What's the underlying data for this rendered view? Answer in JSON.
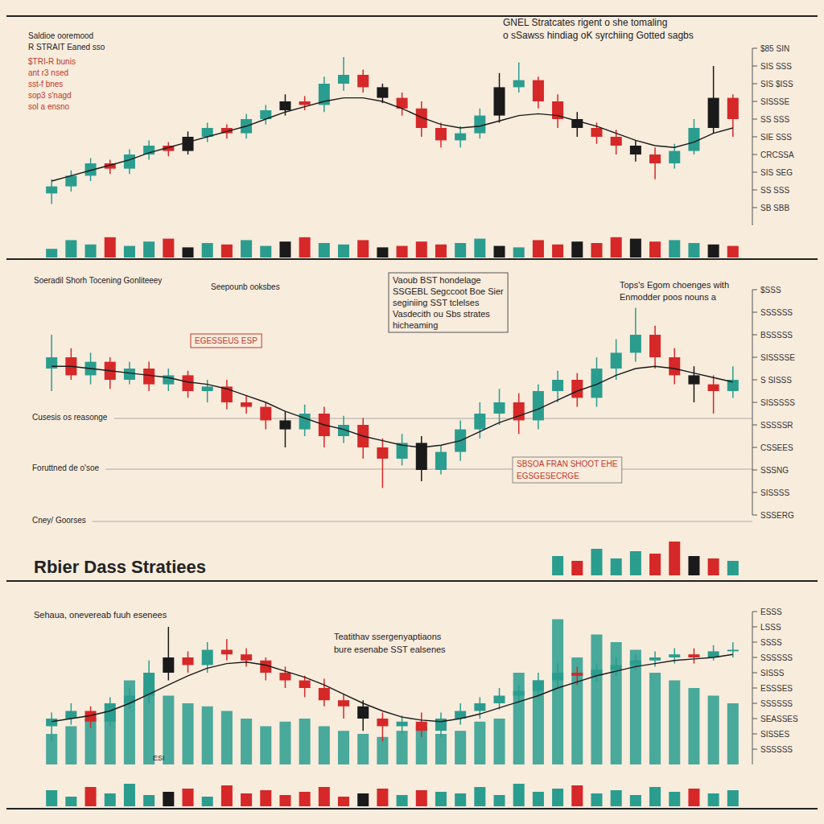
{
  "chart_data": [
    {
      "type": "candlestick",
      "title": "GNEL Stratcates rigent o she tomaling",
      "subtitle": "o sSawss hindiag oK syrchiing Gotted sagbs",
      "annotations": [
        "Saldioe ooremood",
        "R STRAIT Eaned sso",
        "$TRI-R bunis",
        "ant r3 nsed",
        "sst-f bnes",
        "sop3 s'nagd",
        "sol a ensno"
      ],
      "x": [
        1,
        2,
        3,
        4,
        5,
        6,
        7,
        8,
        9,
        10,
        11,
        12,
        13,
        14,
        15,
        16,
        17,
        18,
        19,
        20,
        21,
        22,
        23,
        24,
        25,
        26,
        27,
        28,
        29,
        30,
        31,
        32,
        33,
        34,
        35,
        36
      ],
      "xlim": [
        0,
        37
      ],
      "ylim": [
        0,
        100
      ],
      "yticks": [
        {
          "value": 100,
          "label": "$85 SIN"
        },
        {
          "value": 90,
          "label": "SIS SSS"
        },
        {
          "value": 80,
          "label": "SIS $ISS"
        },
        {
          "value": 70,
          "label": "SISSSE"
        },
        {
          "value": 60,
          "label": "SS SSS"
        },
        {
          "value": 50,
          "label": "SIE SSS"
        },
        {
          "value": 40,
          "label": "CRCSSA"
        },
        {
          "value": 30,
          "label": "SIS SEG"
        },
        {
          "value": 20,
          "label": "SS SSS"
        },
        {
          "value": 10,
          "label": "SB SBB"
        }
      ],
      "y2lim": [
        0,
        100
      ],
      "tick_labels": "y",
      "grid": false,
      "colors": [
        "#2a9d8f",
        "#2a9d8f",
        "#2a9d8f",
        "#d62828",
        "#2a9d8f",
        "#2a9d8f",
        "#d62828",
        "#1a1a1a",
        "#2a9d8f",
        "#d62828",
        "#2a9d8f",
        "#2a9d8f",
        "#1a1a1a",
        "#d62828",
        "#2a9d8f",
        "#2a9d8f",
        "#d62828",
        "#1a1a1a",
        "#d62828",
        "#d62828",
        "#d62828",
        "#2a9d8f",
        "#2a9d8f",
        "#1a1a1a",
        "#2a9d8f",
        "#d62828",
        "#d62828",
        "#1a1a1a",
        "#d62828",
        "#d62828",
        "#1a1a1a",
        "#d62828",
        "#2a9d8f",
        "#2a9d8f",
        "#1a1a1a",
        "#d62828"
      ],
      "open": [
        18,
        22,
        28,
        35,
        32,
        40,
        45,
        42,
        50,
        55,
        52,
        60,
        65,
        70,
        68,
        80,
        85,
        78,
        72,
        66,
        55,
        48,
        52,
        62,
        78,
        82,
        70,
        60,
        55,
        50,
        45,
        40,
        35,
        42,
        55,
        72
      ],
      "high": [
        26,
        31,
        38,
        37,
        43,
        48,
        47,
        53,
        58,
        57,
        63,
        68,
        74,
        73,
        84,
        95,
        88,
        80,
        75,
        70,
        58,
        56,
        66,
        86,
        92,
        84,
        74,
        64,
        58,
        54,
        48,
        44,
        46,
        60,
        90,
        74
      ],
      "low": [
        12,
        19,
        25,
        29,
        29,
        37,
        39,
        40,
        47,
        49,
        49,
        57,
        62,
        65,
        64,
        76,
        75,
        69,
        62,
        50,
        44,
        44,
        49,
        58,
        75,
        66,
        55,
        50,
        46,
        40,
        36,
        26,
        32,
        40,
        52,
        50
      ],
      "close": [
        22,
        28,
        35,
        32,
        40,
        45,
        42,
        50,
        55,
        52,
        60,
        65,
        70,
        68,
        80,
        85,
        78,
        72,
        66,
        55,
        48,
        52,
        62,
        78,
        82,
        70,
        60,
        55,
        50,
        45,
        40,
        35,
        42,
        55,
        72,
        60
      ],
      "series": [
        {
          "type": "line",
          "color": "#1a1a1a",
          "values": [
            25,
            28,
            31,
            34,
            37,
            41,
            44,
            47,
            50,
            53,
            56,
            60,
            64,
            67,
            70,
            72,
            72,
            70,
            66,
            61,
            57,
            55,
            56,
            59,
            62,
            63,
            62,
            59,
            56,
            52,
            48,
            45,
            44,
            47,
            52,
            55
          ]
        },
        {
          "type": "bar",
          "axis": "y2",
          "values": [
            30,
            60,
            45,
            70,
            40,
            55,
            65,
            35,
            50,
            45,
            60,
            40,
            55,
            70,
            50,
            45,
            60,
            35,
            40,
            55,
            45,
            50,
            65,
            40,
            35,
            60,
            45,
            55,
            50,
            70,
            65,
            55,
            60,
            50,
            45,
            40
          ]
        }
      ]
    },
    {
      "type": "candlestick",
      "annotations": [
        "Soeradil Shorh Tocening Gonliteeey",
        "Seepounb ooksbes",
        "Vaoub BST hondelage",
        "SSGEBL Segccoot Boe Sier",
        "seginiing SST tclelses",
        "Vasdecith ou Sbs strates",
        "hicheaming",
        "Tops's Egom choenges with",
        "Enmodder poos nouns a",
        "EGESSEUS ESP",
        "SBSOA FRAN SHOOT EHE",
        "EGSGESECRGE",
        "Cusesis os reasonge",
        "Foruttned de o'soe",
        "Cney/ Goorses"
      ],
      "x": [
        1,
        2,
        3,
        4,
        5,
        6,
        7,
        8,
        9,
        10,
        11,
        12,
        13,
        14,
        15,
        16,
        17,
        18,
        19,
        20,
        21,
        22,
        23,
        24,
        25,
        26,
        27,
        28,
        29,
        30,
        31,
        32,
        33,
        34,
        35,
        36
      ],
      "xlim": [
        0,
        37
      ],
      "ylim": [
        0,
        100
      ],
      "yticks": [
        {
          "value": 100,
          "label": "$SSS"
        },
        {
          "value": 90,
          "label": "SSSSSS"
        },
        {
          "value": 80,
          "label": "BSSSSS"
        },
        {
          "value": 70,
          "label": "SISSSSE"
        },
        {
          "value": 60,
          "label": "S SISSS"
        },
        {
          "value": 50,
          "label": "SISSSSS"
        },
        {
          "value": 40,
          "label": "SSSSSR"
        },
        {
          "value": 30,
          "label": "CSSEES"
        },
        {
          "value": 20,
          "label": "SSSNG"
        },
        {
          "value": 10,
          "label": "SISSSS"
        },
        {
          "value": 0,
          "label": "SSSERG"
        }
      ],
      "y2lim": [
        0,
        100
      ],
      "tick_labels": "y",
      "grid": false,
      "colors": [
        "#2a9d8f",
        "#d62828",
        "#2a9d8f",
        "#d62828",
        "#2a9d8f",
        "#d62828",
        "#2a9d8f",
        "#d62828",
        "#2a9d8f",
        "#d62828",
        "#d62828",
        "#d62828",
        "#1a1a1a",
        "#2a9d8f",
        "#d62828",
        "#2a9d8f",
        "#d62828",
        "#d62828",
        "#2a9d8f",
        "#1a1a1a",
        "#2a9d8f",
        "#2a9d8f",
        "#2a9d8f",
        "#2a9d8f",
        "#d62828",
        "#2a9d8f",
        "#2a9d8f",
        "#d62828",
        "#2a9d8f",
        "#2a9d8f",
        "#2a9d8f",
        "#d62828",
        "#d62828",
        "#1a1a1a",
        "#d62828",
        "#2a9d8f"
      ],
      "open": [
        65,
        70,
        62,
        68,
        60,
        65,
        58,
        62,
        55,
        57,
        50,
        48,
        42,
        38,
        45,
        35,
        40,
        30,
        25,
        32,
        20,
        28,
        38,
        45,
        50,
        42,
        55,
        60,
        52,
        65,
        72,
        80,
        70,
        62,
        58,
        55
      ],
      "high": [
        80,
        74,
        72,
        70,
        68,
        68,
        65,
        64,
        60,
        60,
        53,
        50,
        46,
        49,
        48,
        44,
        43,
        34,
        36,
        35,
        31,
        42,
        50,
        56,
        54,
        58,
        64,
        63,
        70,
        78,
        92,
        84,
        74,
        66,
        62,
        66
      ],
      "low": [
        55,
        60,
        58,
        56,
        58,
        55,
        55,
        52,
        50,
        47,
        45,
        38,
        30,
        35,
        30,
        32,
        25,
        12,
        22,
        15,
        18,
        24,
        34,
        40,
        36,
        38,
        50,
        48,
        48,
        60,
        68,
        65,
        58,
        50,
        45,
        52
      ],
      "close": [
        70,
        62,
        68,
        60,
        65,
        58,
        62,
        55,
        57,
        50,
        48,
        42,
        38,
        45,
        35,
        40,
        30,
        25,
        32,
        20,
        28,
        38,
        45,
        50,
        42,
        55,
        60,
        52,
        65,
        72,
        80,
        70,
        62,
        58,
        55,
        60
      ],
      "series": [
        {
          "type": "line",
          "color": "#1a1a1a",
          "values": [
            66,
            66,
            65,
            64,
            63,
            62,
            61,
            59,
            58,
            56,
            53,
            50,
            46,
            43,
            40,
            38,
            35,
            33,
            31,
            30,
            31,
            33,
            37,
            41,
            44,
            47,
            51,
            55,
            58,
            62,
            65,
            66,
            65,
            63,
            61,
            59
          ]
        },
        {
          "type": "bar",
          "axis": "y2",
          "values": [
            null,
            null,
            null,
            null,
            null,
            null,
            null,
            null,
            null,
            null,
            null,
            null,
            null,
            null,
            null,
            null,
            null,
            null,
            null,
            null,
            null,
            null,
            null,
            null,
            null,
            null,
            40,
            30,
            55,
            35,
            50,
            45,
            70,
            40,
            35,
            30
          ]
        }
      ]
    },
    {
      "type": "candlestick",
      "title": "Rbier Dass Stratiees",
      "annotations": [
        "Sehaua, onevereab fuuh esenees",
        "Teatithav ssergenyaptiaons",
        "bure esenabe SST ealsenes",
        "ESI"
      ],
      "x": [
        1,
        2,
        3,
        4,
        5,
        6,
        7,
        8,
        9,
        10,
        11,
        12,
        13,
        14,
        15,
        16,
        17,
        18,
        19,
        20,
        21,
        22,
        23,
        24,
        25,
        26,
        27,
        28,
        29,
        30,
        31,
        32,
        33,
        34,
        35,
        36
      ],
      "xlim": [
        0,
        37
      ],
      "ylim": [
        0,
        100
      ],
      "yticks": [
        {
          "value": 100,
          "label": "ESSS"
        },
        {
          "value": 90,
          "label": "LSSS"
        },
        {
          "value": 80,
          "label": "SSSS"
        },
        {
          "value": 70,
          "label": "SSSSSS"
        },
        {
          "value": 60,
          "label": "SISSS"
        },
        {
          "value": 50,
          "label": "ESSSES"
        },
        {
          "value": 40,
          "label": "SSSSSS"
        },
        {
          "value": 30,
          "label": "SEASSES"
        },
        {
          "value": 20,
          "label": "SISSES"
        },
        {
          "value": 10,
          "label": "SSSSSS"
        }
      ],
      "y2lim": [
        0,
        100
      ],
      "tick_labels": "y",
      "grid": false,
      "colors": [
        "#2a9d8f",
        "#2a9d8f",
        "#d62828",
        "#2a9d8f",
        "#2a9d8f",
        "#2a9d8f",
        "#1a1a1a",
        "#d62828",
        "#2a9d8f",
        "#d62828",
        "#d62828",
        "#d62828",
        "#d62828",
        "#d62828",
        "#d62828",
        "#d62828",
        "#1a1a1a",
        "#d62828",
        "#2a9d8f",
        "#d62828",
        "#2a9d8f",
        "#2a9d8f",
        "#2a9d8f",
        "#2a9d8f",
        "#2a9d8f",
        "#2a9d8f",
        "#2a9d8f",
        "#d62828",
        "#2a9d8f",
        "#2a9d8f",
        "#2a9d8f",
        "#2a9d8f",
        "#2a9d8f",
        "#d62828",
        "#2a9d8f",
        "#2a9d8f"
      ],
      "open": [
        25,
        30,
        35,
        28,
        40,
        45,
        60,
        70,
        65,
        75,
        72,
        68,
        60,
        55,
        50,
        42,
        38,
        30,
        25,
        28,
        22,
        30,
        35,
        40,
        45,
        48,
        55,
        60,
        58,
        62,
        65,
        68,
        70,
        72,
        70,
        74
      ],
      "high": [
        34,
        40,
        38,
        44,
        50,
        68,
        90,
        74,
        80,
        82,
        76,
        70,
        64,
        58,
        56,
        46,
        42,
        34,
        32,
        34,
        34,
        40,
        44,
        50,
        52,
        60,
        66,
        64,
        66,
        70,
        72,
        74,
        76,
        76,
        78,
        80
      ],
      "low": [
        15,
        26,
        24,
        25,
        36,
        40,
        55,
        60,
        60,
        68,
        64,
        55,
        50,
        44,
        38,
        30,
        22,
        15,
        20,
        18,
        18,
        26,
        30,
        36,
        40,
        44,
        50,
        52,
        54,
        58,
        62,
        64,
        66,
        66,
        68,
        70
      ],
      "close": [
        30,
        35,
        28,
        40,
        45,
        60,
        70,
        65,
        75,
        72,
        68,
        60,
        55,
        50,
        42,
        38,
        30,
        25,
        28,
        22,
        30,
        35,
        40,
        45,
        48,
        55,
        60,
        58,
        62,
        65,
        68,
        70,
        72,
        70,
        74,
        75
      ],
      "series": [
        {
          "type": "bar",
          "color": "#2a9d8f",
          "values": [
            20,
            25,
            30,
            35,
            55,
            50,
            45,
            40,
            38,
            35,
            30,
            25,
            28,
            30,
            25,
            22,
            20,
            18,
            22,
            25,
            20,
            22,
            28,
            30,
            60,
            55,
            95,
            70,
            85,
            80,
            75,
            60,
            55,
            50,
            45,
            40
          ]
        },
        {
          "type": "line",
          "color": "#1a1a1a",
          "values": [
            28,
            30,
            32,
            35,
            40,
            46,
            52,
            58,
            63,
            66,
            67,
            65,
            61,
            57,
            52,
            46,
            40,
            35,
            31,
            29,
            28,
            30,
            33,
            37,
            41,
            45,
            50,
            54,
            58,
            61,
            64,
            66,
            68,
            69,
            70,
            72
          ]
        },
        {
          "type": "bar",
          "axis": "y2",
          "values": [
            50,
            30,
            60,
            40,
            70,
            35,
            45,
            55,
            30,
            65,
            40,
            50,
            35,
            45,
            60,
            30,
            40,
            55,
            35,
            50,
            45,
            40,
            60,
            35,
            70,
            45,
            55,
            65,
            40,
            50,
            35,
            60,
            45,
            55,
            40,
            50
          ]
        }
      ]
    }
  ]
}
